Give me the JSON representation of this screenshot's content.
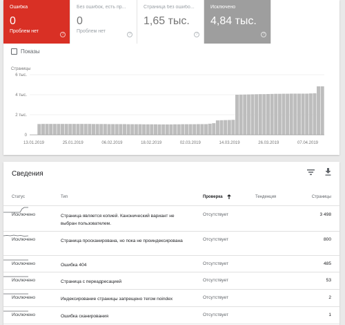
{
  "tiles": [
    {
      "title": "Ошибка",
      "value": "0",
      "sub": "Проблем нет",
      "bg": "#d93025"
    },
    {
      "title": "Без ошибок, есть пр...",
      "value": "0",
      "sub": "Проблем нет",
      "bg": "#ffffff"
    },
    {
      "title": "Страница без ошибо...",
      "value": "1,65 тыс.",
      "sub": "",
      "bg": "#ffffff"
    },
    {
      "title": "Исключено",
      "value": "4,84 тыс.",
      "sub": "",
      "bg": "#9e9e9e"
    }
  ],
  "impressions_label": "Показы",
  "chart_data": {
    "type": "bar",
    "ylabel": "Страницы",
    "y_ticks": [
      "0",
      "2 тыс.",
      "4 тыс.",
      "6 тыс."
    ],
    "ylim": [
      0,
      6000
    ],
    "x_ticks": [
      "13.01.2019",
      "25.01.2019",
      "06.02.2019",
      "18.02.2019",
      "02.03.2019",
      "14.03.2019",
      "26.03.2019",
      "07.04.2019"
    ],
    "series": [
      {
        "values": [
          1080,
          1090,
          1090,
          1090,
          1090,
          1090,
          1090,
          1090,
          1090,
          1090,
          1090,
          1090,
          1090,
          1090,
          1080,
          1080,
          1080,
          1080,
          1070,
          1070,
          1070,
          1070,
          1070,
          1060,
          1060,
          1060,
          1060,
          1050,
          1050,
          1050,
          1050,
          1040,
          1040,
          1040,
          1040,
          1050,
          1050,
          1060,
          1060,
          1060,
          1060,
          1070,
          1070,
          1070,
          1110,
          1160,
          1440,
          1460,
          1470,
          1480,
          1500,
          4000,
          4010,
          4020,
          4030,
          4040,
          4050,
          4060,
          4060,
          4070,
          4080,
          4090,
          4090,
          4100,
          4100,
          4110,
          4110,
          4110,
          4110,
          4110,
          4130,
          4150,
          4840,
          4840
        ],
        "color": "#bdbdbd"
      }
    ],
    "grid": true
  },
  "details": {
    "title": "Сведения",
    "columns": {
      "status": "Статус",
      "type": "Тип",
      "check": "Проверка",
      "trend": "Тенденция",
      "pages": "Страницы"
    },
    "rows": [
      {
        "status": "Исключено",
        "type": "Страница является копией. Канонический вариант не выбран пользователем.",
        "check": "Отсутствует",
        "pages": "3 498",
        "trend": "step-up"
      },
      {
        "status": "Исключено",
        "type": "Страница просканирована, но пока не проиндексирована",
        "check": "Отсутствует",
        "pages": "800",
        "trend": "flat-wavy"
      },
      {
        "status": "Исключено",
        "type": "Ошибка 404",
        "check": "Отсутствует",
        "pages": "485",
        "trend": "flat"
      },
      {
        "status": "Исключено",
        "type": "Страница с переадресацией",
        "check": "Отсутствует",
        "pages": "53",
        "trend": "flat"
      },
      {
        "status": "Исключено",
        "type": "Индексирование страницы запрещено тегом noindex",
        "check": "Отсутствует",
        "pages": "2",
        "trend": "flat"
      },
      {
        "status": "Исключено",
        "type": "Ошибка сканирования",
        "check": "Отсутствует",
        "pages": "1",
        "trend": "flat"
      }
    ]
  },
  "icons": {
    "help": "help-icon",
    "filter": "filter-icon",
    "download": "download-icon",
    "sort": "arrow-up-icon"
  }
}
